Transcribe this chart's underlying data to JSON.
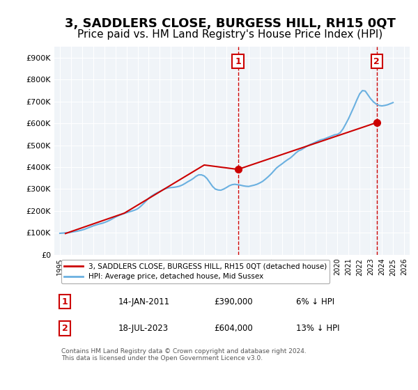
{
  "title": "3, SADDLERS CLOSE, BURGESS HILL, RH15 0QT",
  "subtitle": "Price paid vs. HM Land Registry's House Price Index (HPI)",
  "title_fontsize": 13,
  "subtitle_fontsize": 11,
  "ylabel_ticks": [
    "£0",
    "£100K",
    "£200K",
    "£300K",
    "£400K",
    "£500K",
    "£600K",
    "£700K",
    "£800K",
    "£900K"
  ],
  "ytick_values": [
    0,
    100000,
    200000,
    300000,
    400000,
    500000,
    600000,
    700000,
    800000,
    900000
  ],
  "ylim": [
    0,
    950000
  ],
  "xlim_start": 1994.5,
  "xlim_end": 2026.5,
  "xticks": [
    1995,
    1996,
    1997,
    1998,
    1999,
    2000,
    2001,
    2002,
    2003,
    2004,
    2005,
    2006,
    2007,
    2008,
    2009,
    2010,
    2011,
    2012,
    2013,
    2014,
    2015,
    2016,
    2017,
    2018,
    2019,
    2020,
    2021,
    2022,
    2023,
    2024,
    2025,
    2026
  ],
  "hpi_color": "#6ab0e0",
  "price_color": "#cc0000",
  "vline_color": "#cc0000",
  "vline_style": "--",
  "marker1_x": 2011.04,
  "marker1_y": 390000,
  "marker2_x": 2023.54,
  "marker2_y": 604000,
  "annotation1": "1",
  "annotation2": "2",
  "legend_label1": "3, SADDLERS CLOSE, BURGESS HILL, RH15 0QT (detached house)",
  "legend_label2": "HPI: Average price, detached house, Mid Sussex",
  "table_row1": [
    "1",
    "14-JAN-2011",
    "£390,000",
    "6% ↓ HPI"
  ],
  "table_row2": [
    "2",
    "18-JUL-2023",
    "£604,000",
    "13% ↓ HPI"
  ],
  "footnote": "Contains HM Land Registry data © Crown copyright and database right 2024.\nThis data is licensed under the Open Government Licence v3.0.",
  "bg_color": "#ffffff",
  "plot_bg_color": "#f0f4f8",
  "grid_color": "#ffffff",
  "hpi_data_x": [
    1995.0,
    1995.25,
    1995.5,
    1995.75,
    1996.0,
    1996.25,
    1996.5,
    1996.75,
    1997.0,
    1997.25,
    1997.5,
    1997.75,
    1998.0,
    1998.25,
    1998.5,
    1998.75,
    1999.0,
    1999.25,
    1999.5,
    1999.75,
    2000.0,
    2000.25,
    2000.5,
    2000.75,
    2001.0,
    2001.25,
    2001.5,
    2001.75,
    2002.0,
    2002.25,
    2002.5,
    2002.75,
    2003.0,
    2003.25,
    2003.5,
    2003.75,
    2004.0,
    2004.25,
    2004.5,
    2004.75,
    2005.0,
    2005.25,
    2005.5,
    2005.75,
    2006.0,
    2006.25,
    2006.5,
    2006.75,
    2007.0,
    2007.25,
    2007.5,
    2007.75,
    2008.0,
    2008.25,
    2008.5,
    2008.75,
    2009.0,
    2009.25,
    2009.5,
    2009.75,
    2010.0,
    2010.25,
    2010.5,
    2010.75,
    2011.0,
    2011.25,
    2011.5,
    2011.75,
    2012.0,
    2012.25,
    2012.5,
    2012.75,
    2013.0,
    2013.25,
    2013.5,
    2013.75,
    2014.0,
    2014.25,
    2014.5,
    2014.75,
    2015.0,
    2015.25,
    2015.5,
    2015.75,
    2016.0,
    2016.25,
    2016.5,
    2016.75,
    2017.0,
    2017.25,
    2017.5,
    2017.75,
    2018.0,
    2018.25,
    2018.5,
    2018.75,
    2019.0,
    2019.25,
    2019.5,
    2019.75,
    2020.0,
    2020.25,
    2020.5,
    2020.75,
    2021.0,
    2021.25,
    2021.5,
    2021.75,
    2022.0,
    2022.25,
    2022.5,
    2022.75,
    2023.0,
    2023.25,
    2023.5,
    2023.75,
    2024.0,
    2024.25,
    2024.5,
    2024.75,
    2025.0
  ],
  "hpi_data_y": [
    98000,
    99000,
    100000,
    101000,
    103000,
    105000,
    107000,
    110000,
    113000,
    117000,
    122000,
    127000,
    132000,
    136000,
    140000,
    143000,
    147000,
    152000,
    158000,
    165000,
    172000,
    178000,
    183000,
    188000,
    192000,
    196000,
    200000,
    204000,
    210000,
    220000,
    232000,
    245000,
    258000,
    268000,
    276000,
    283000,
    289000,
    296000,
    302000,
    305000,
    307000,
    308000,
    310000,
    313000,
    318000,
    325000,
    333000,
    340000,
    348000,
    358000,
    365000,
    365000,
    360000,
    348000,
    330000,
    312000,
    300000,
    296000,
    295000,
    300000,
    307000,
    315000,
    320000,
    322000,
    320000,
    318000,
    315000,
    313000,
    312000,
    315000,
    318000,
    322000,
    328000,
    335000,
    345000,
    356000,
    368000,
    382000,
    396000,
    406000,
    415000,
    425000,
    434000,
    442000,
    453000,
    465000,
    475000,
    480000,
    488000,
    496000,
    503000,
    508000,
    514000,
    520000,
    525000,
    528000,
    533000,
    538000,
    543000,
    548000,
    550000,
    558000,
    575000,
    598000,
    622000,
    650000,
    678000,
    708000,
    735000,
    750000,
    748000,
    730000,
    712000,
    698000,
    688000,
    682000,
    680000,
    682000,
    685000,
    690000,
    695000
  ],
  "price_data_x": [
    1995.5,
    2000.8,
    2008.0,
    2011.04,
    2023.54
  ],
  "price_data_y": [
    97000,
    190000,
    410000,
    390000,
    604000
  ]
}
